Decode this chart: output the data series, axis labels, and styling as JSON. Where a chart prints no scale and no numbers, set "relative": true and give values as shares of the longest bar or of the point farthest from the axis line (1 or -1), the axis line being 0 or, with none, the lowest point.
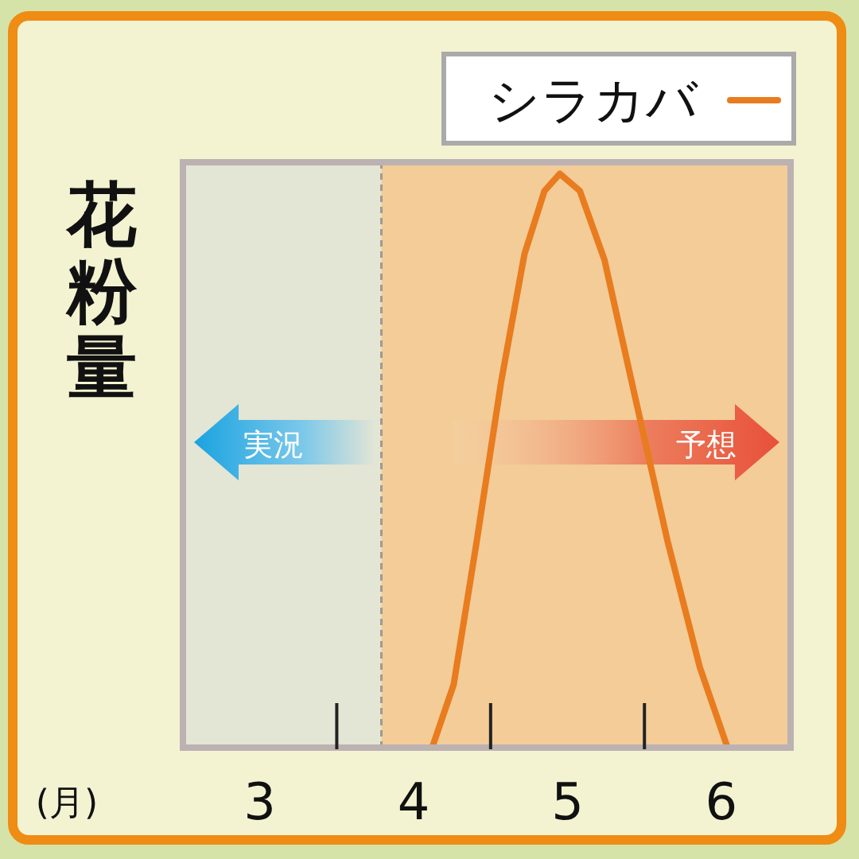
{
  "chart_data": {
    "type": "line",
    "relative": true,
    "xlabel": "(月)",
    "ylabel": "花粉量",
    "legend": "top right",
    "tick_labels": "x",
    "xlim": [
      2.5,
      6.45
    ],
    "xticks": [
      3,
      {
        "value": 3.5,
        "label": null
      },
      4,
      {
        "value": 4.5,
        "label": null
      },
      5,
      {
        "value": 5.5,
        "label": null
      },
      6
    ],
    "bands": [
      {
        "axis": "x",
        "from": 2.5,
        "to": 3.79,
        "color": "#e3e5d5"
      },
      {
        "axis": "x",
        "from": 3.79,
        "to": 6.45,
        "color": "#f3cc98"
      }
    ],
    "ref_lines": [
      {
        "axis": "x",
        "value": 3.79,
        "line_style": "dashed",
        "color": "#a09a90"
      }
    ],
    "annotations": [
      "実況",
      "予想"
    ],
    "series": [
      {
        "name": "シラカバ",
        "color": "#e87c1e",
        "x": [
          4.12,
          4.26,
          4.41,
          4.57,
          4.72,
          4.85,
          4.95,
          5.08,
          5.24,
          5.44,
          5.65,
          5.86,
          6.04
        ],
        "values": [
          0,
          0.11,
          0.36,
          0.64,
          0.86,
          0.97,
          1,
          0.97,
          0.85,
          0.61,
          0.36,
          0.14,
          0
        ]
      }
    ]
  }
}
